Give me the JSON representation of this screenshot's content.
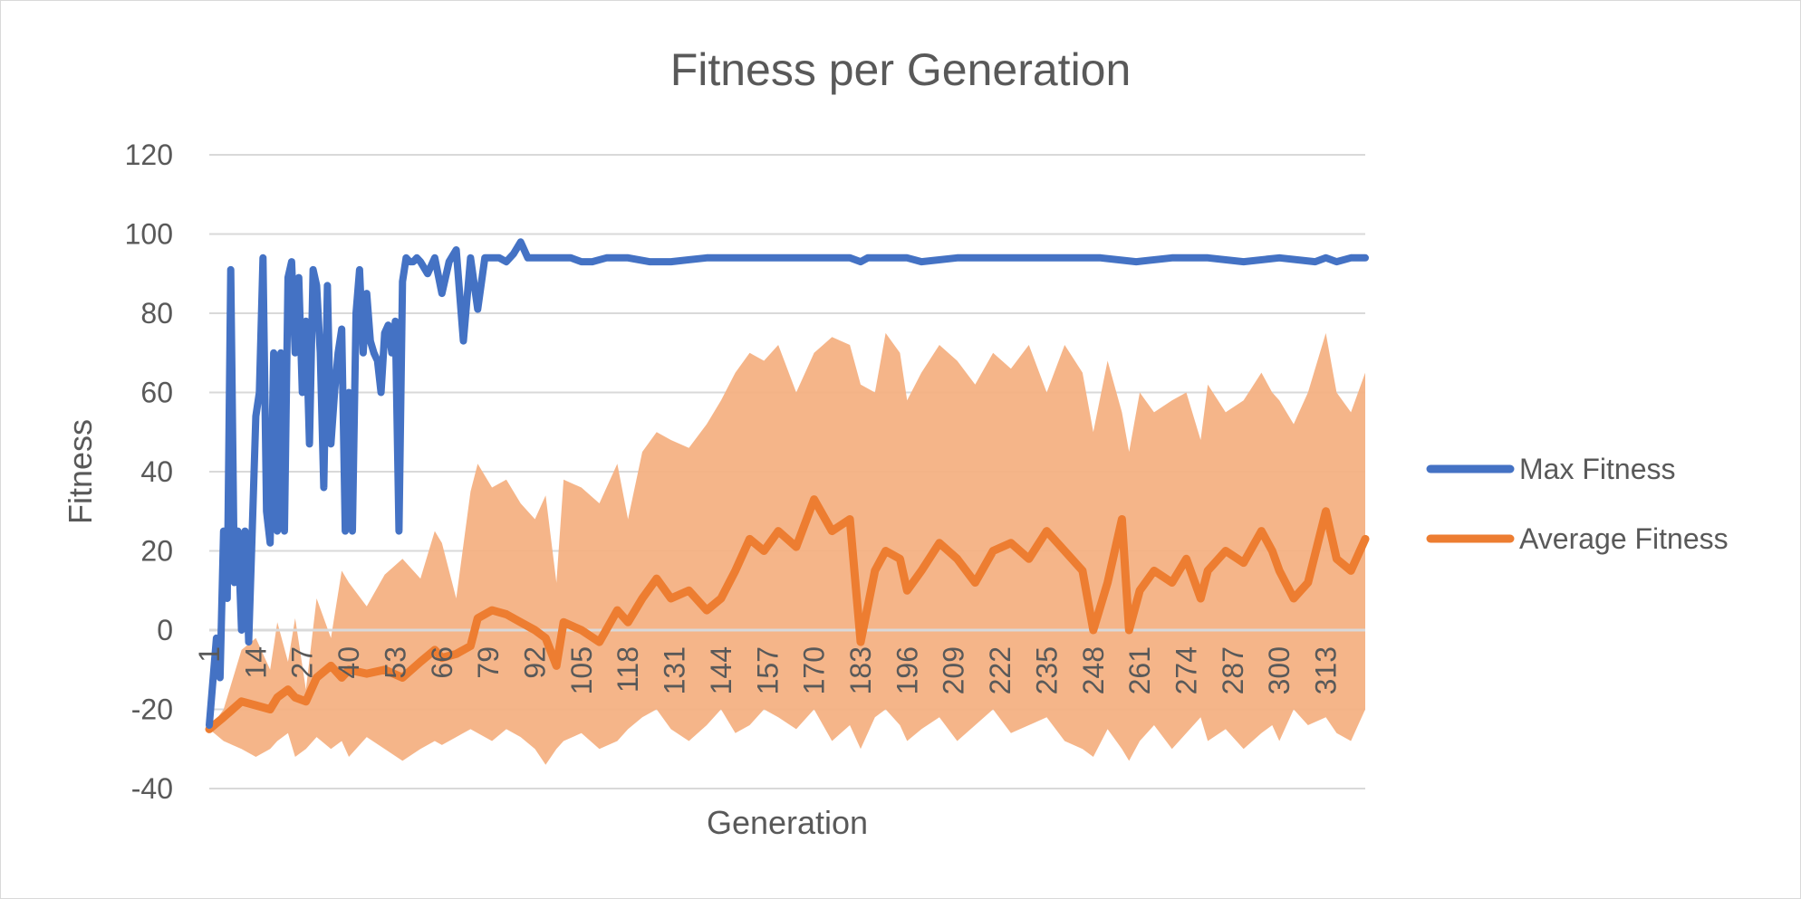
{
  "chart_data": {
    "type": "line",
    "title": "Fitness per Generation",
    "xlabel": "Generation",
    "ylabel": "Fitness",
    "ylim": [
      -40,
      120
    ],
    "y_ticks": [
      -40,
      -20,
      0,
      20,
      40,
      60,
      80,
      100,
      120
    ],
    "x_range": [
      1,
      324
    ],
    "x_tick_labels": [
      "1",
      "14",
      "27",
      "40",
      "53",
      "66",
      "79",
      "92",
      "105",
      "118",
      "131",
      "144",
      "157",
      "170",
      "183",
      "196",
      "209",
      "222",
      "235",
      "248",
      "261",
      "274",
      "287",
      "300",
      "313"
    ],
    "grid": true,
    "legend_position": "right",
    "colors": {
      "max": "#4472c4",
      "avg": "#ed7d31",
      "band": "#f4b183",
      "grid": "#d9d9d9",
      "text": "#595959"
    },
    "series": [
      {
        "name": "Max Fitness",
        "x": [
          1,
          3,
          4,
          5,
          6,
          7,
          8,
          9,
          10,
          11,
          12,
          13,
          14,
          15,
          16,
          17,
          18,
          19,
          20,
          21,
          22,
          23,
          24,
          25,
          26,
          27,
          28,
          29,
          30,
          31,
          32,
          33,
          34,
          35,
          36,
          37,
          38,
          39,
          40,
          41,
          42,
          43,
          44,
          45,
          46,
          47,
          48,
          49,
          50,
          51,
          52,
          53,
          54,
          55,
          56,
          57,
          58,
          59,
          60,
          62,
          64,
          66,
          68,
          70,
          72,
          74,
          76,
          78,
          82,
          84,
          86,
          88,
          90,
          92,
          94,
          96,
          98,
          100,
          102,
          105,
          108,
          112,
          118,
          124,
          130,
          140,
          150,
          160,
          170,
          180,
          183,
          185,
          188,
          190,
          196,
          200,
          210,
          220,
          230,
          240,
          250,
          260,
          270,
          280,
          290,
          300,
          310,
          313,
          316,
          320,
          324
        ],
        "values": [
          -24,
          -2,
          -12,
          25,
          8,
          91,
          12,
          25,
          0,
          25,
          -3,
          25,
          54,
          60,
          94,
          30,
          22,
          70,
          25,
          70,
          25,
          89,
          93,
          70,
          89,
          60,
          78,
          47,
          91,
          87,
          70,
          36,
          87,
          47,
          60,
          70,
          76,
          25,
          60,
          25,
          80,
          91,
          70,
          85,
          73,
          70,
          68,
          60,
          75,
          77,
          70,
          78,
          25,
          88,
          94,
          93,
          93,
          94,
          93,
          90,
          94,
          85,
          93,
          96,
          73,
          94,
          81,
          94,
          94,
          93,
          95,
          98,
          94,
          94,
          94,
          94,
          94,
          94,
          94,
          93,
          93,
          94,
          94,
          93,
          93,
          94,
          94,
          94,
          94,
          94,
          93,
          94,
          94,
          94,
          94,
          93,
          94,
          94,
          94,
          94,
          94,
          93,
          94,
          94,
          93,
          94,
          93,
          94,
          93,
          94,
          94
        ]
      },
      {
        "name": "Average Fitness",
        "x": [
          1,
          5,
          10,
          14,
          18,
          20,
          23,
          25,
          28,
          31,
          35,
          38,
          40,
          45,
          50,
          55,
          60,
          64,
          66,
          70,
          74,
          76,
          80,
          84,
          88,
          92,
          95,
          98,
          100,
          105,
          110,
          115,
          118,
          122,
          126,
          130,
          135,
          140,
          144,
          148,
          152,
          156,
          160,
          165,
          170,
          175,
          180,
          183,
          187,
          190,
          194,
          196,
          200,
          205,
          210,
          215,
          220,
          225,
          230,
          235,
          240,
          245,
          248,
          252,
          256,
          258,
          261,
          265,
          270,
          274,
          278,
          280,
          285,
          290,
          295,
          298,
          300,
          304,
          308,
          313,
          316,
          320,
          324
        ],
        "values": [
          -25,
          -22,
          -18,
          -19,
          -20,
          -17,
          -15,
          -17,
          -18,
          -12,
          -9,
          -12,
          -10,
          -11,
          -10,
          -12,
          -8,
          -5,
          -7,
          -6,
          -4,
          3,
          5,
          4,
          2,
          0,
          -2,
          -9,
          2,
          0,
          -3,
          5,
          2,
          8,
          13,
          8,
          10,
          5,
          8,
          15,
          23,
          20,
          25,
          21,
          33,
          25,
          28,
          -3,
          15,
          20,
          18,
          10,
          15,
          22,
          18,
          12,
          20,
          22,
          18,
          25,
          20,
          15,
          0,
          12,
          28,
          0,
          10,
          15,
          12,
          18,
          8,
          15,
          20,
          17,
          25,
          20,
          15,
          8,
          12,
          30,
          18,
          15,
          23
        ]
      }
    ],
    "band": {
      "name": "",
      "x": [
        1,
        5,
        10,
        14,
        18,
        20,
        23,
        25,
        28,
        31,
        35,
        38,
        40,
        45,
        50,
        55,
        60,
        64,
        66,
        70,
        74,
        76,
        80,
        84,
        88,
        92,
        95,
        98,
        100,
        105,
        110,
        115,
        118,
        122,
        126,
        130,
        135,
        140,
        144,
        148,
        152,
        156,
        160,
        165,
        170,
        175,
        180,
        183,
        187,
        190,
        194,
        196,
        200,
        205,
        210,
        215,
        220,
        225,
        230,
        235,
        240,
        245,
        248,
        252,
        256,
        258,
        261,
        265,
        270,
        274,
        278,
        280,
        285,
        290,
        295,
        298,
        300,
        304,
        308,
        313,
        316,
        320,
        324
      ],
      "upper": [
        -25,
        -20,
        -5,
        -2,
        -10,
        2,
        -8,
        3,
        -15,
        8,
        -2,
        15,
        12,
        6,
        14,
        18,
        13,
        25,
        22,
        8,
        35,
        42,
        36,
        38,
        32,
        28,
        34,
        12,
        38,
        36,
        32,
        42,
        28,
        45,
        50,
        48,
        46,
        52,
        58,
        65,
        70,
        68,
        72,
        60,
        70,
        74,
        72,
        62,
        60,
        75,
        70,
        58,
        65,
        72,
        68,
        62,
        70,
        66,
        72,
        60,
        72,
        65,
        50,
        68,
        55,
        45,
        60,
        55,
        58,
        60,
        48,
        62,
        55,
        58,
        65,
        60,
        58,
        52,
        60,
        75,
        60,
        55,
        65
      ],
      "lower": [
        -25,
        -28,
        -30,
        -32,
        -30,
        -28,
        -26,
        -32,
        -30,
        -27,
        -30,
        -28,
        -32,
        -27,
        -30,
        -33,
        -30,
        -28,
        -29,
        -27,
        -25,
        -26,
        -28,
        -25,
        -27,
        -30,
        -34,
        -30,
        -28,
        -26,
        -30,
        -28,
        -25,
        -22,
        -20,
        -25,
        -28,
        -24,
        -20,
        -26,
        -24,
        -20,
        -22,
        -25,
        -20,
        -28,
        -24,
        -30,
        -22,
        -20,
        -24,
        -28,
        -25,
        -22,
        -28,
        -24,
        -20,
        -26,
        -24,
        -22,
        -28,
        -30,
        -32,
        -25,
        -30,
        -33,
        -28,
        -24,
        -30,
        -26,
        -22,
        -28,
        -25,
        -30,
        -26,
        -24,
        -28,
        -20,
        -24,
        -22,
        -26,
        -28,
        -20
      ]
    }
  }
}
